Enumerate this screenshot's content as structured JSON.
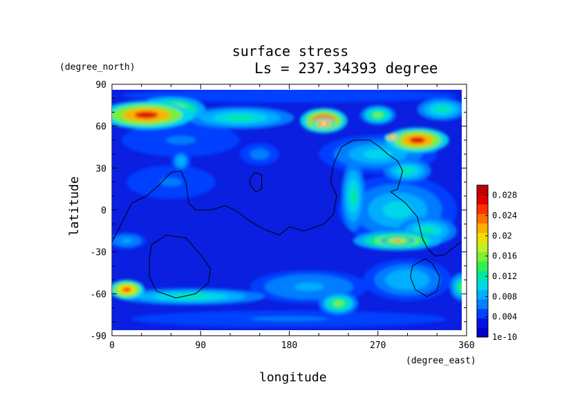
{
  "chart_data": {
    "type": "heatmap",
    "title": "surface stress",
    "subtitle": "Ls = 237.34393 degree",
    "xlabel": "longitude",
    "ylabel": "latitude",
    "xunit": "(degree_east)",
    "yunit": "(degree_north)",
    "xlim": [
      0,
      360
    ],
    "ylim": [
      -90,
      90
    ],
    "x_ticks": [
      0,
      90,
      180,
      270,
      360
    ],
    "y_ticks": [
      -90,
      -60,
      -30,
      0,
      30,
      60,
      90
    ],
    "colorbar": {
      "min": 1e-10,
      "max": 0.03,
      "tick_values": [
        0,
        0.004,
        0.008,
        0.012,
        0.016,
        0.02,
        0.024,
        0.028
      ],
      "tick_labels": [
        "1e-10",
        "0.004",
        "0.008",
        "0.012",
        "0.016",
        "0.02",
        "0.024",
        "0.028"
      ],
      "colors": [
        "#0000c8",
        "#0010e8",
        "#0040ff",
        "#0080ff",
        "#00b0ff",
        "#00d8e8",
        "#00e8a0",
        "#30f050",
        "#80f030",
        "#c0f020",
        "#f0e000",
        "#ffb000",
        "#ff7000",
        "#ff3000",
        "#e00000",
        "#c00000"
      ]
    },
    "grid": false,
    "field_blobs": [
      {
        "lon": 35,
        "lat": 68,
        "rx": 48,
        "ry": 10,
        "value": 0.027
      },
      {
        "lon": 60,
        "lat": 72,
        "rx": 35,
        "ry": 9,
        "value": 0.02
      },
      {
        "lon": 215,
        "lat": 64,
        "rx": 24,
        "ry": 9,
        "value": 0.029
      },
      {
        "lon": 215,
        "lat": 62,
        "rx": 11,
        "ry": 4,
        "value": 0.031
      },
      {
        "lon": 310,
        "lat": 50,
        "rx": 32,
        "ry": 9,
        "value": 0.027
      },
      {
        "lon": 285,
        "lat": 52,
        "rx": 8,
        "ry": 3,
        "value": 0.031
      },
      {
        "lon": 130,
        "lat": 66,
        "rx": 55,
        "ry": 8,
        "value": 0.012
      },
      {
        "lon": 335,
        "lat": 72,
        "rx": 25,
        "ry": 8,
        "value": 0.013
      },
      {
        "lon": 270,
        "lat": 68,
        "rx": 18,
        "ry": 7,
        "value": 0.016
      },
      {
        "lon": 270,
        "lat": 40,
        "rx": 60,
        "ry": 14,
        "value": 0.01
      },
      {
        "lon": 300,
        "lat": 28,
        "rx": 24,
        "ry": 8,
        "value": 0.012
      },
      {
        "lon": 70,
        "lat": 50,
        "rx": 60,
        "ry": 12,
        "value": 0.006
      },
      {
        "lon": 60,
        "lat": 20,
        "rx": 45,
        "ry": 12,
        "value": 0.006
      },
      {
        "lon": 290,
        "lat": 0,
        "rx": 60,
        "ry": 25,
        "value": 0.01
      },
      {
        "lon": 245,
        "lat": 10,
        "rx": 12,
        "ry": 25,
        "value": 0.013
      },
      {
        "lon": 320,
        "lat": -15,
        "rx": 30,
        "ry": 10,
        "value": 0.012
      },
      {
        "lon": 290,
        "lat": -22,
        "rx": 45,
        "ry": 7,
        "value": 0.02
      },
      {
        "lon": 290,
        "lat": -22,
        "rx": 18,
        "ry": 3,
        "value": 0.023
      },
      {
        "lon": 15,
        "lat": -22,
        "rx": 20,
        "ry": 6,
        "value": 0.008
      },
      {
        "lon": 15,
        "lat": -57,
        "rx": 18,
        "ry": 7,
        "value": 0.026
      },
      {
        "lon": 80,
        "lat": -62,
        "rx": 75,
        "ry": 6,
        "value": 0.012
      },
      {
        "lon": 230,
        "lat": -67,
        "rx": 20,
        "ry": 8,
        "value": 0.016
      },
      {
        "lon": 200,
        "lat": -55,
        "rx": 60,
        "ry": 12,
        "value": 0.008
      },
      {
        "lon": 300,
        "lat": -50,
        "rx": 45,
        "ry": 15,
        "value": 0.009
      },
      {
        "lon": 355,
        "lat": -55,
        "rx": 12,
        "ry": 10,
        "value": 0.014
      },
      {
        "lon": 180,
        "lat": -78,
        "rx": 160,
        "ry": 6,
        "value": 0.006
      },
      {
        "lon": 180,
        "lat": 82,
        "rx": 170,
        "ry": 5,
        "value": 0.005
      },
      {
        "lon": 150,
        "lat": 40,
        "rx": 20,
        "ry": 8,
        "value": 0.007
      },
      {
        "lon": 70,
        "lat": 35,
        "rx": 10,
        "ry": 8,
        "value": 0.009
      }
    ],
    "contour_lines": [
      [
        [
          0,
          -23
        ],
        [
          8,
          -12
        ],
        [
          20,
          5
        ],
        [
          35,
          10
        ],
        [
          48,
          18
        ],
        [
          60,
          27
        ],
        [
          70,
          28
        ],
        [
          75,
          20
        ],
        [
          78,
          5
        ],
        [
          85,
          0
        ],
        [
          100,
          0
        ],
        [
          115,
          3
        ],
        [
          125,
          0
        ],
        [
          140,
          -8
        ],
        [
          155,
          -14
        ],
        [
          170,
          -18
        ],
        [
          180,
          -12
        ],
        [
          195,
          -15
        ],
        [
          215,
          -10
        ],
        [
          225,
          -3
        ],
        [
          228,
          10
        ],
        [
          222,
          20
        ],
        [
          225,
          33
        ],
        [
          233,
          45
        ],
        [
          245,
          50
        ],
        [
          262,
          50
        ],
        [
          272,
          45
        ],
        [
          280,
          40
        ],
        [
          290,
          35
        ],
        [
          295,
          28
        ],
        [
          290,
          15
        ],
        [
          283,
          13
        ],
        [
          298,
          5
        ],
        [
          310,
          -5
        ],
        [
          315,
          -20
        ],
        [
          320,
          -27
        ],
        [
          328,
          -33
        ],
        [
          338,
          -32
        ],
        [
          350,
          -25
        ],
        [
          360,
          -20
        ]
      ],
      [
        [
          140,
          22
        ],
        [
          145,
          27
        ],
        [
          152,
          25
        ],
        [
          152,
          15
        ],
        [
          146,
          13
        ],
        [
          140,
          18
        ],
        [
          140,
          22
        ]
      ],
      [
        [
          40,
          -25
        ],
        [
          55,
          -18
        ],
        [
          75,
          -20
        ],
        [
          90,
          -32
        ],
        [
          100,
          -42
        ],
        [
          98,
          -52
        ],
        [
          85,
          -60
        ],
        [
          65,
          -63
        ],
        [
          45,
          -58
        ],
        [
          38,
          -48
        ],
        [
          38,
          -35
        ],
        [
          40,
          -25
        ]
      ],
      [
        [
          305,
          -40
        ],
        [
          318,
          -35
        ],
        [
          325,
          -38
        ],
        [
          333,
          -48
        ],
        [
          330,
          -58
        ],
        [
          320,
          -62
        ],
        [
          308,
          -57
        ],
        [
          303,
          -48
        ],
        [
          305,
          -40
        ]
      ]
    ]
  }
}
